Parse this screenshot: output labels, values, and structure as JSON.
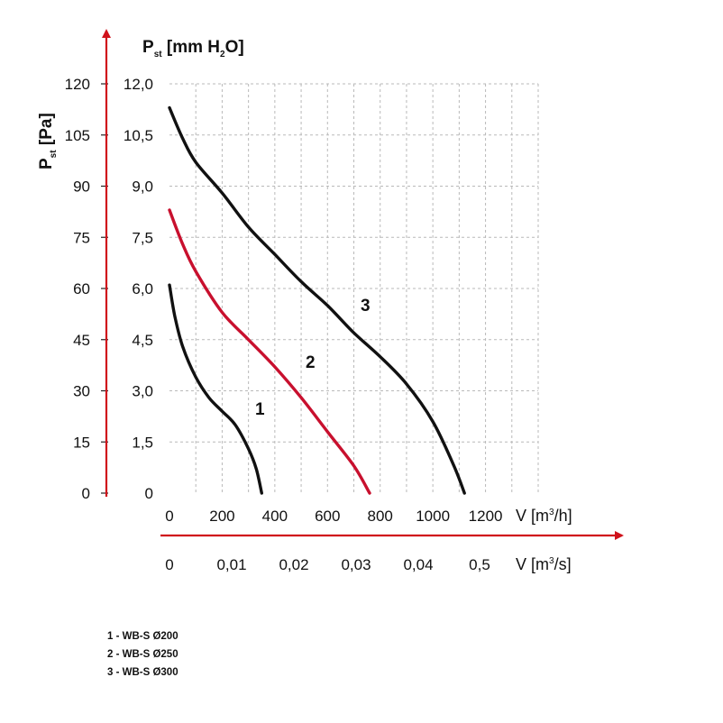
{
  "chart_data": {
    "type": "line",
    "x_axis_primary": {
      "label": "V [m³/h]",
      "label_parts": [
        "V [m",
        "3",
        "/h]"
      ],
      "ticks": [
        "0",
        "200",
        "400",
        "600",
        "800",
        "1000",
        "1200"
      ],
      "range": [
        0,
        1400
      ]
    },
    "x_axis_secondary": {
      "label": "V [m³/s]",
      "label_parts": [
        "V [m",
        "3",
        "/s]"
      ],
      "ticks": [
        "0",
        "0,01",
        "0,02",
        "0,03",
        "0,04",
        "0,5"
      ]
    },
    "y_axis_pa": {
      "label": "Pst [Pa]",
      "label_parts": [
        "P",
        "st",
        " [Pa]"
      ],
      "ticks": [
        "0",
        "15",
        "30",
        "45",
        "60",
        "75",
        "90",
        "105",
        "120"
      ],
      "range": [
        0,
        120
      ]
    },
    "y_axis_mm": {
      "label": "Pst [mm H2O]",
      "label_parts": [
        "P",
        "st",
        " [mm H",
        "2",
        "O]"
      ],
      "ticks": [
        "0",
        "1,5",
        "3,0",
        "4,5",
        "6,0",
        "7,5",
        "9,0",
        "10,5",
        "12,0"
      ],
      "range": [
        0,
        12
      ]
    },
    "grid": true,
    "series": [
      {
        "name": "1",
        "color": "#111111",
        "points": [
          [
            0,
            61
          ],
          [
            20,
            52
          ],
          [
            50,
            43
          ],
          [
            100,
            34
          ],
          [
            150,
            28
          ],
          [
            200,
            24
          ],
          [
            250,
            20
          ],
          [
            300,
            13
          ],
          [
            330,
            7
          ],
          [
            350,
            0
          ]
        ]
      },
      {
        "name": "2",
        "color": "#c8102e",
        "points": [
          [
            0,
            83
          ],
          [
            50,
            73
          ],
          [
            100,
            65
          ],
          [
            200,
            53
          ],
          [
            300,
            45
          ],
          [
            400,
            37
          ],
          [
            500,
            28
          ],
          [
            600,
            18
          ],
          [
            700,
            8
          ],
          [
            760,
            0
          ]
        ]
      },
      {
        "name": "3",
        "color": "#111111",
        "points": [
          [
            0,
            113
          ],
          [
            50,
            104
          ],
          [
            100,
            97
          ],
          [
            200,
            88
          ],
          [
            300,
            78
          ],
          [
            400,
            70
          ],
          [
            500,
            62
          ],
          [
            600,
            55
          ],
          [
            700,
            47
          ],
          [
            800,
            40
          ],
          [
            900,
            32
          ],
          [
            1000,
            21
          ],
          [
            1080,
            8
          ],
          [
            1120,
            0
          ]
        ]
      }
    ],
    "legend": [
      "1 - WB-S Ø200",
      "2 - WB-S Ø250",
      "3 - WB-S Ø300"
    ],
    "legend_placement": "bottom-left"
  },
  "colors": {
    "accent_red": "#d0121b",
    "curve_black": "#111111",
    "grid": "#b9b9b9"
  }
}
